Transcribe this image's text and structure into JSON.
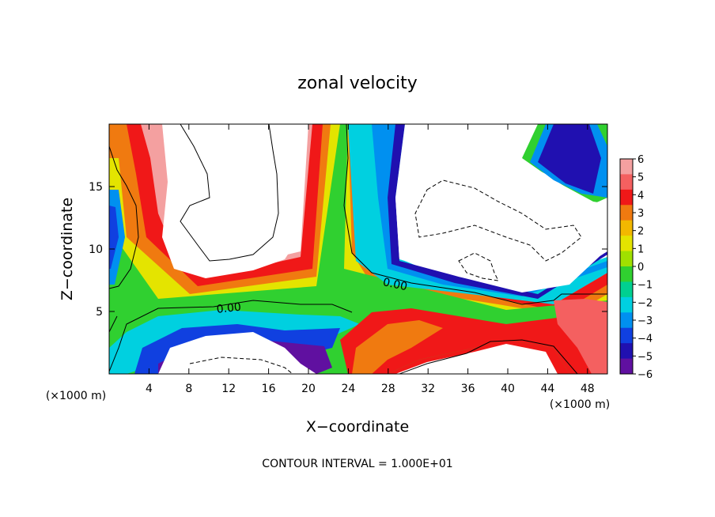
{
  "chart_data": {
    "type": "heatmap",
    "title": "zonal velocity",
    "xlabel": "X−coordinate",
    "ylabel": "Z−coordinate",
    "x_unit_label": "(×1000 m)",
    "y_unit_label": "(×1000 m)",
    "footer": "CONTOUR INTERVAL = 1.000E+01",
    "xlim": [
      0,
      50
    ],
    "ylim": [
      0,
      20
    ],
    "x_ticks": [
      4,
      8,
      12,
      16,
      20,
      24,
      28,
      32,
      36,
      40,
      44,
      48
    ],
    "y_ticks": [
      5,
      10,
      15
    ],
    "colorbar": {
      "ticks": [
        6,
        5,
        4,
        3,
        2,
        1,
        0,
        -1,
        -2,
        -3,
        -4,
        -5,
        -6
      ],
      "colors": [
        "#f4a0a0",
        "#f46060",
        "#f01818",
        "#f07a10",
        "#f2b800",
        "#e4e400",
        "#a0e000",
        "#30d030",
        "#00d090",
        "#00d0e0",
        "#0090f0",
        "#1040e0",
        "#2010b0",
        "#6010a0"
      ]
    },
    "contour_labels": [
      {
        "text": "0.00",
        "x": 12,
        "y": 5.3
      },
      {
        "text": "0.00",
        "x": 28.7,
        "y": 7.2
      }
    ],
    "grid": false
  }
}
